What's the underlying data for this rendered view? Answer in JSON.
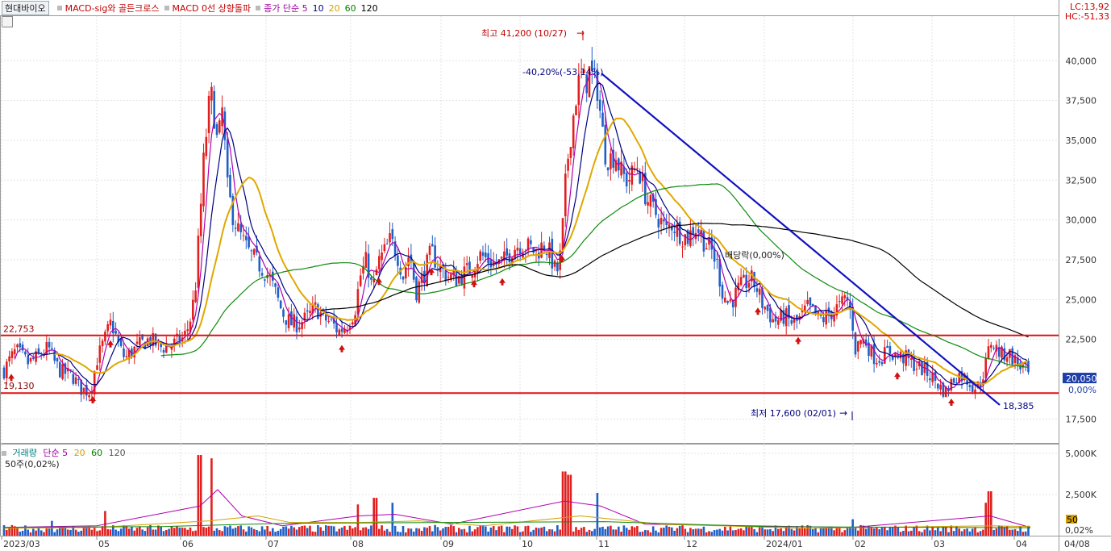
{
  "title_chip": "현대바이오",
  "legend": [
    {
      "text": "MACD-sig와 골든크로스",
      "color": "#c00000"
    },
    {
      "text": "MACD 0선 상향돌파",
      "color": "#c00000"
    },
    {
      "text": "종가 단순 5",
      "color": "#a000a0"
    },
    {
      "text": "10",
      "color": "#000080"
    },
    {
      "text": "20",
      "color": "#d4a000"
    },
    {
      "text": "60",
      "color": "#008000"
    },
    {
      "text": "120",
      "color": "#000000"
    }
  ],
  "top_right": {
    "lc": "LC:13,92",
    "hc": "HC:-51,33"
  },
  "volume_legend": {
    "title": "거래량",
    "items": [
      {
        "text": "단순 5",
        "color": "#a000a0"
      },
      {
        "text": "20",
        "color": "#d4a000"
      },
      {
        "text": "60",
        "color": "#008000"
      },
      {
        "text": "120",
        "color": "#000000"
      }
    ],
    "sub": "50주(0,02%)"
  },
  "colors": {
    "up": "#e0201f",
    "down": "#1f5fc8",
    "trend": "#1010c0",
    "hline": "#e01010",
    "grid": "#e3e3e3"
  },
  "chart_data": [
    {
      "type": "candlestick",
      "title": "",
      "x_tick_labels": [
        "2023/03",
        "05",
        "06",
        "07",
        "08",
        "09",
        "10",
        "11",
        "12",
        "2024/01",
        "02",
        "03",
        "04",
        "04/08"
      ],
      "y_tick_labels": [
        "40,000",
        "37,500",
        "35,000",
        "32,500",
        "30,000",
        "27,500",
        "25,000",
        "22,500",
        "17,500"
      ],
      "ylim": [
        16000,
        42800
      ],
      "price_path": [
        [
          0,
          20100
        ],
        [
          12,
          21200
        ],
        [
          20,
          21800
        ],
        [
          35,
          21000
        ],
        [
          50,
          21500
        ],
        [
          60,
          22000
        ],
        [
          66,
          21200
        ],
        [
          75,
          20500
        ],
        [
          90,
          20200
        ],
        [
          100,
          19400
        ],
        [
          112,
          19200
        ],
        [
          120,
          21200
        ],
        [
          130,
          22500
        ],
        [
          138,
          23600
        ],
        [
          148,
          22000
        ],
        [
          155,
          21300
        ],
        [
          165,
          21800
        ],
        [
          175,
          22200
        ],
        [
          185,
          22500
        ],
        [
          200,
          22000
        ],
        [
          215,
          22200
        ],
        [
          228,
          22600
        ],
        [
          235,
          23500
        ],
        [
          242,
          25500
        ],
        [
          248,
          30000
        ],
        [
          253,
          34000
        ],
        [
          257,
          36000
        ],
        [
          261,
          38000
        ],
        [
          265,
          37000
        ],
        [
          270,
          34500
        ],
        [
          276,
          37000
        ],
        [
          282,
          32000
        ],
        [
          288,
          30500
        ],
        [
          294,
          29500
        ],
        [
          300,
          28800
        ],
        [
          308,
          28000
        ],
        [
          316,
          27500
        ],
        [
          325,
          27000
        ],
        [
          333,
          26500
        ],
        [
          341,
          25500
        ],
        [
          350,
          24200
        ],
        [
          360,
          23500
        ],
        [
          370,
          23500
        ],
        [
          380,
          23800
        ],
        [
          392,
          24500
        ],
        [
          402,
          23800
        ],
        [
          412,
          23500
        ],
        [
          420,
          23000
        ],
        [
          430,
          23400
        ],
        [
          440,
          24300
        ],
        [
          447,
          26500
        ],
        [
          455,
          27500
        ],
        [
          462,
          25500
        ],
        [
          469,
          27300
        ],
        [
          477,
          28000
        ],
        [
          484,
          28700
        ],
        [
          492,
          28000
        ],
        [
          500,
          26500
        ],
        [
          508,
          28000
        ],
        [
          516,
          25500
        ],
        [
          525,
          26500
        ],
        [
          535,
          28000
        ],
        [
          545,
          27000
        ],
        [
          555,
          26500
        ],
        [
          565,
          26300
        ],
        [
          575,
          26600
        ],
        [
          585,
          27000
        ],
        [
          595,
          27800
        ],
        [
          605,
          27500
        ],
        [
          615,
          27200
        ],
        [
          625,
          27400
        ],
        [
          635,
          28200
        ],
        [
          645,
          28500
        ],
        [
          655,
          28300
        ],
        [
          665,
          28000
        ],
        [
          675,
          28500
        ],
        [
          683,
          27800
        ],
        [
          690,
          26500
        ],
        [
          696,
          28000
        ],
        [
          701,
          32000
        ],
        [
          706,
          34800
        ],
        [
          711,
          36500
        ],
        [
          716,
          38300
        ],
        [
          721,
          39000
        ],
        [
          726,
          38500
        ],
        [
          731,
          39300
        ],
        [
          736,
          38800
        ],
        [
          741,
          38300
        ],
        [
          746,
          36000
        ],
        [
          751,
          34200
        ],
        [
          756,
          33800
        ],
        [
          763,
          34200
        ],
        [
          770,
          33000
        ],
        [
          777,
          32500
        ],
        [
          784,
          32800
        ],
        [
          791,
          33500
        ],
        [
          798,
          32000
        ],
        [
          805,
          31000
        ],
        [
          812,
          30500
        ],
        [
          819,
          30000
        ],
        [
          826,
          29300
        ],
        [
          833,
          29800
        ],
        [
          840,
          29400
        ],
        [
          847,
          29000
        ],
        [
          854,
          28900
        ],
        [
          861,
          29600
        ],
        [
          868,
          29300
        ],
        [
          875,
          28500
        ],
        [
          882,
          28100
        ],
        [
          889,
          27300
        ],
        [
          896,
          25500
        ],
        [
          903,
          24800
        ],
        [
          910,
          25100
        ],
        [
          917,
          25700
        ],
        [
          924,
          26000
        ],
        [
          931,
          26300
        ],
        [
          938,
          25800
        ],
        [
          945,
          24800
        ],
        [
          952,
          24300
        ],
        [
          959,
          23700
        ],
        [
          966,
          23700
        ],
        [
          973,
          24000
        ],
        [
          980,
          23600
        ],
        [
          987,
          23500
        ],
        [
          994,
          23900
        ],
        [
          1001,
          24500
        ],
        [
          1008,
          24200
        ],
        [
          1015,
          23800
        ],
        [
          1022,
          23800
        ],
        [
          1029,
          24100
        ],
        [
          1036,
          24400
        ],
        [
          1043,
          24600
        ],
        [
          1050,
          25200
        ],
        [
          1057,
          23700
        ],
        [
          1061,
          21900
        ],
        [
          1068,
          22500
        ],
        [
          1075,
          22300
        ],
        [
          1082,
          21500
        ],
        [
          1089,
          21300
        ],
        [
          1096,
          21500
        ],
        [
          1103,
          21800
        ],
        [
          1110,
          21500
        ],
        [
          1117,
          21400
        ],
        [
          1124,
          21300
        ],
        [
          1131,
          21000
        ],
        [
          1138,
          20800
        ],
        [
          1145,
          20600
        ],
        [
          1152,
          20300
        ],
        [
          1159,
          20000
        ],
        [
          1166,
          19500
        ],
        [
          1173,
          19200
        ],
        [
          1180,
          19800
        ],
        [
          1187,
          20300
        ],
        [
          1194,
          20200
        ],
        [
          1201,
          19900
        ],
        [
          1208,
          19500
        ],
        [
          1215,
          19600
        ],
        [
          1222,
          20800
        ],
        [
          1229,
          22400
        ],
        [
          1236,
          21900
        ],
        [
          1243,
          21500
        ],
        [
          1250,
          21700
        ],
        [
          1257,
          21300
        ],
        [
          1264,
          20900
        ],
        [
          1271,
          20600
        ],
        [
          1278,
          20050
        ]
      ],
      "horizontal_lines": [
        {
          "value": 22753,
          "label": "22,753"
        },
        {
          "value": 19130,
          "label": "19,130"
        }
      ],
      "trendline": {
        "from": {
          "x": 746,
          "y": 39200
        },
        "to": {
          "x": 1240,
          "y": 18385
        },
        "label": "18,385",
        "pct_label": "-40,20%(-53,14%)"
      },
      "annotations": {
        "high": "최고 41,200 (10/27)",
        "low": "최저 17,600 (02/01)",
        "dividend": "배당락(0,00%)"
      },
      "last_price_label": "20,050",
      "zero_pct_label": "0,00%",
      "signal_arrow_x": [
        14,
        115,
        137,
        424,
        470,
        535,
        588,
        623,
        697,
        940,
        990,
        1113,
        1180
      ]
    },
    {
      "type": "bar",
      "title": "거래량",
      "y_tick_labels": [
        "5,000K",
        "2,500K",
        "0,02%"
      ],
      "ylim": [
        0,
        5000
      ],
      "last_volume_label": "50",
      "peaks": [
        [
          65,
          900
        ],
        [
          130,
          1500
        ],
        [
          248,
          4900
        ],
        [
          263,
          4700
        ],
        [
          445,
          1900
        ],
        [
          465,
          2300
        ],
        [
          487,
          2000
        ],
        [
          700,
          3900
        ],
        [
          706,
          3700
        ],
        [
          740,
          2600
        ],
        [
          1057,
          1000
        ],
        [
          1222,
          2000
        ],
        [
          1228,
          2700
        ]
      ]
    }
  ]
}
